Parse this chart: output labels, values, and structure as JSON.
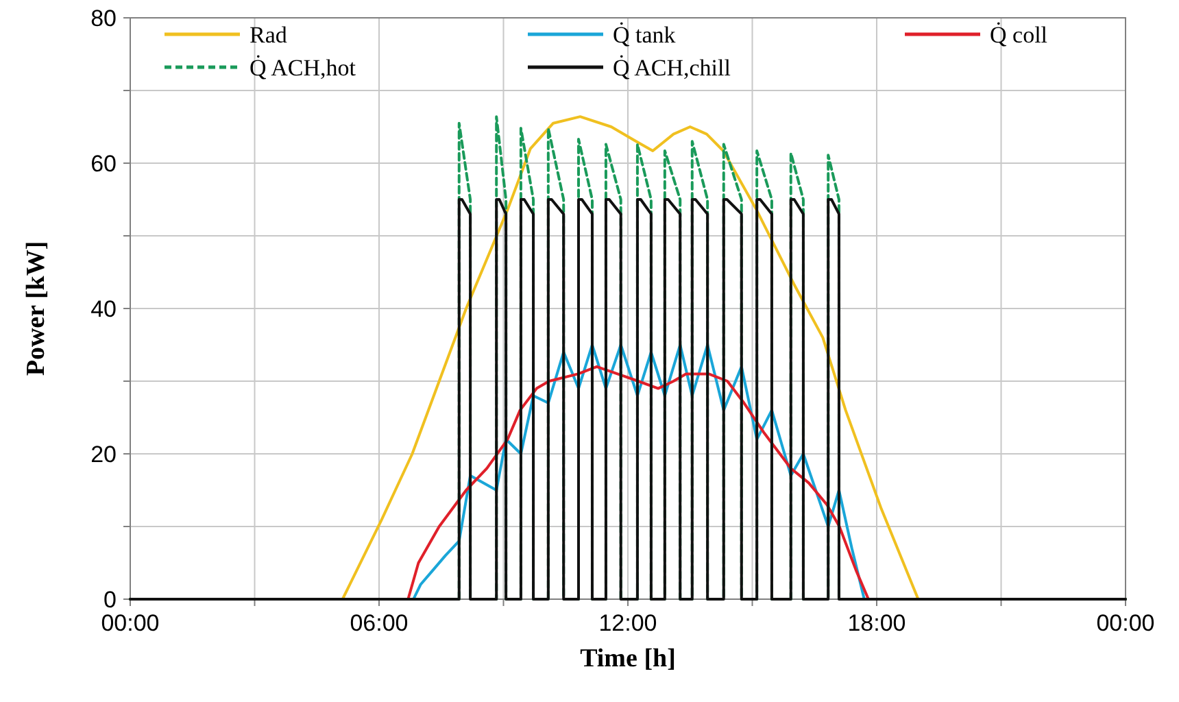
{
  "chart_data": {
    "type": "line",
    "xlabel": "Time [h]",
    "ylabel": "Power [kW]",
    "xlim": [
      0,
      24
    ],
    "xticks": [
      {
        "value": 0,
        "label": "00:00"
      },
      {
        "value": 3,
        "label": null
      },
      {
        "value": 6,
        "label": "06:00"
      },
      {
        "value": 9,
        "label": null
      },
      {
        "value": 12,
        "label": "12:00"
      },
      {
        "value": 15,
        "label": null
      },
      {
        "value": 18,
        "label": "18:00"
      },
      {
        "value": 21,
        "label": null
      },
      {
        "value": 24,
        "label": "00:00"
      }
    ],
    "ylim": [
      0,
      80
    ],
    "yticks": [
      0,
      {
        "value": 10,
        "label": null
      },
      20,
      {
        "value": 30,
        "label": null
      },
      40,
      {
        "value": 50,
        "label": null
      },
      60,
      {
        "value": 70,
        "label": null
      },
      80
    ],
    "grid": true,
    "legend": "top",
    "marker": "none",
    "series": [
      {
        "name": "Rad",
        "color": "#f0c020",
        "line_style": "solid",
        "x": [
          0,
          5.12,
          6.05,
          6.8,
          7.45,
          8.1,
          9.1,
          9.65,
          10.2,
          10.85,
          11.6,
          12.2,
          12.6,
          13.1,
          13.5,
          13.9,
          14.3,
          15.1,
          16.0,
          16.7,
          17.25,
          18.1,
          19.0,
          24
        ],
        "values": [
          0,
          0,
          10.8,
          20,
          30,
          40,
          53.6,
          62,
          65.5,
          66.4,
          65,
          63,
          61.7,
          64,
          65,
          64,
          61.7,
          53.6,
          43.4,
          36,
          26,
          12.6,
          0,
          0
        ]
      },
      {
        "name": "Q̇ tank",
        "color": "#1aa6d8",
        "line_style": "solid",
        "x": [
          0,
          6.83,
          7.0,
          7.3,
          7.6,
          7.93,
          8.2,
          8.83,
          9.06,
          9.42,
          9.72,
          10.08,
          10.45,
          10.81,
          11.14,
          11.47,
          11.83,
          12.23,
          12.56,
          12.89,
          13.26,
          13.55,
          13.92,
          14.31,
          14.74,
          15.11,
          15.47,
          15.93,
          16.23,
          16.83,
          17.09,
          17.4,
          17.7,
          24
        ],
        "values": [
          0,
          0,
          2,
          4,
          6,
          8,
          17,
          15,
          22,
          20,
          28,
          27,
          34,
          29,
          35,
          29,
          35,
          28,
          34,
          28,
          35,
          28,
          35,
          26,
          32,
          22,
          26,
          17,
          20,
          10,
          15,
          7,
          0,
          0
        ]
      },
      {
        "name": "Q̇ coll",
        "color": "#e0202a",
        "line_style": "solid",
        "x": [
          0,
          6.7,
          6.95,
          7.45,
          8.1,
          8.6,
          9.1,
          9.4,
          9.8,
          10.1,
          10.8,
          11.25,
          11.75,
          12.25,
          12.73,
          13.1,
          13.4,
          13.95,
          14.4,
          14.8,
          15.27,
          15.93,
          16.36,
          16.8,
          17.1,
          17.5,
          17.8,
          24
        ],
        "values": [
          0,
          0,
          5,
          10,
          15,
          18,
          22,
          26,
          29,
          30,
          31,
          32,
          31,
          30,
          29,
          30,
          31,
          31,
          30,
          27,
          23,
          18,
          16,
          13,
          10,
          4,
          0,
          0
        ]
      },
      {
        "name": "Q̇ ACH,hot",
        "color": "#1a9a5a",
        "line_style": "dashed",
        "x": [
          0,
          7.93,
          7.93,
          8.2,
          8.2,
          8.83,
          8.83,
          9.06,
          9.06,
          9.42,
          9.42,
          9.72,
          9.72,
          10.08,
          10.08,
          10.45,
          10.45,
          10.81,
          10.81,
          11.14,
          11.14,
          11.47,
          11.47,
          11.83,
          11.83,
          12.23,
          12.23,
          12.56,
          12.56,
          12.89,
          12.89,
          13.26,
          13.26,
          13.55,
          13.55,
          13.92,
          13.92,
          14.31,
          14.31,
          14.74,
          14.74,
          15.11,
          15.11,
          15.47,
          15.47,
          15.93,
          15.93,
          16.23,
          16.23,
          16.83,
          16.83,
          17.09,
          17.09,
          24
        ],
        "values": [
          0,
          0,
          65.5,
          55,
          0,
          0,
          66.4,
          55,
          0,
          0,
          64.8,
          55,
          0,
          0,
          64.8,
          55,
          0,
          0,
          63.3,
          55,
          0,
          0,
          62.6,
          55,
          0,
          0,
          62.6,
          55,
          0,
          0,
          61.7,
          55,
          0,
          0,
          63,
          55,
          0,
          0,
          62.6,
          55,
          0,
          0,
          61.7,
          55,
          0,
          0,
          61.4,
          55,
          0,
          0,
          61.1,
          55,
          0,
          0
        ]
      },
      {
        "name": "Q̇ ACH,chill",
        "color": "#111111",
        "line_style": "solid",
        "x": [
          0,
          7.93,
          7.93,
          8.0,
          8.2,
          8.2,
          8.83,
          8.83,
          8.9,
          9.06,
          9.06,
          9.42,
          9.42,
          9.5,
          9.72,
          9.72,
          10.08,
          10.08,
          10.16,
          10.45,
          10.45,
          10.81,
          10.81,
          10.89,
          11.14,
          11.14,
          11.47,
          11.47,
          11.55,
          11.83,
          11.83,
          12.23,
          12.23,
          12.31,
          12.56,
          12.56,
          12.89,
          12.89,
          12.97,
          13.26,
          13.26,
          13.55,
          13.55,
          13.63,
          13.92,
          13.92,
          14.31,
          14.31,
          14.39,
          14.74,
          14.74,
          15.11,
          15.11,
          15.19,
          15.47,
          15.47,
          15.93,
          15.93,
          16.01,
          16.23,
          16.23,
          16.83,
          16.83,
          16.91,
          17.09,
          17.09,
          24
        ],
        "values": [
          0,
          0,
          55,
          55,
          53,
          0,
          0,
          55,
          55,
          53,
          0,
          0,
          55,
          55,
          53,
          0,
          0,
          55,
          55,
          53,
          0,
          0,
          55,
          55,
          53,
          0,
          0,
          55,
          55,
          53,
          0,
          0,
          55,
          55,
          53,
          0,
          0,
          55,
          55,
          53,
          0,
          0,
          55,
          55,
          53,
          0,
          0,
          55,
          55,
          53,
          0,
          0,
          55,
          55,
          53,
          0,
          0,
          55,
          55,
          53,
          0,
          0,
          55,
          55,
          53,
          0,
          0
        ]
      }
    ]
  }
}
